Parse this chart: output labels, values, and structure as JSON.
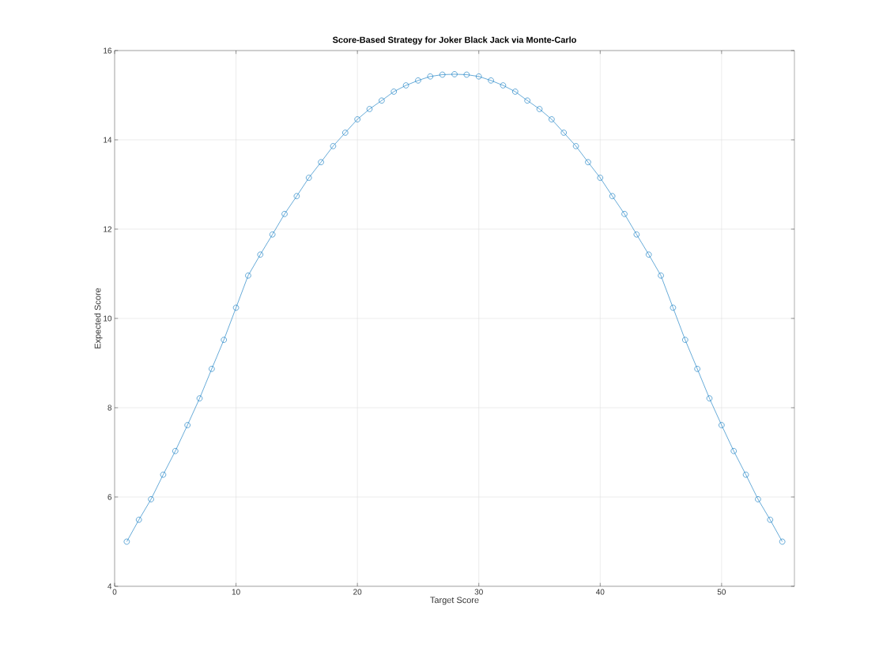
{
  "chart_data": {
    "type": "line",
    "title": "Score-Based Strategy for Joker Black Jack via Monte-Carlo",
    "xlabel": "Target Score",
    "ylabel": "Expected Score",
    "x": [
      1,
      2,
      3,
      4,
      5,
      6,
      7,
      8,
      9,
      10,
      11,
      12,
      13,
      14,
      15,
      16,
      17,
      18,
      19,
      20,
      21,
      22,
      23,
      24,
      25,
      26,
      27,
      28,
      29,
      30,
      31,
      32,
      33,
      34,
      35,
      36,
      37,
      38,
      39,
      40,
      41,
      42,
      43,
      44,
      45,
      46,
      47,
      48,
      49,
      50,
      51,
      52,
      53,
      54,
      55
    ],
    "series": [
      {
        "color": "#0072bd",
        "values": [
          5.0,
          5.49,
          5.95,
          6.5,
          7.03,
          7.61,
          8.21,
          8.87,
          9.52,
          10.24,
          10.96,
          11.43,
          11.88,
          12.34,
          12.74,
          13.15,
          13.5,
          13.86,
          14.16,
          14.46,
          14.69,
          14.88,
          15.08,
          15.22,
          15.33,
          15.42,
          15.46,
          15.47,
          15.46,
          15.42,
          15.33,
          15.22,
          15.08,
          14.88,
          14.69,
          14.46,
          14.16,
          13.86,
          13.5,
          13.15,
          12.74,
          12.34,
          11.88,
          11.43,
          10.96,
          10.24,
          9.52,
          8.87,
          8.21,
          7.61,
          7.03,
          6.5,
          5.95,
          5.49,
          5.0
        ]
      }
    ],
    "xlim": [
      0,
      56
    ],
    "ylim": [
      4,
      16
    ],
    "xticks": [
      0,
      10,
      20,
      30,
      40,
      50
    ],
    "yticks": [
      4,
      6,
      8,
      10,
      12,
      14,
      16
    ],
    "grid": true,
    "marker": "circle",
    "line_style": "solid"
  }
}
